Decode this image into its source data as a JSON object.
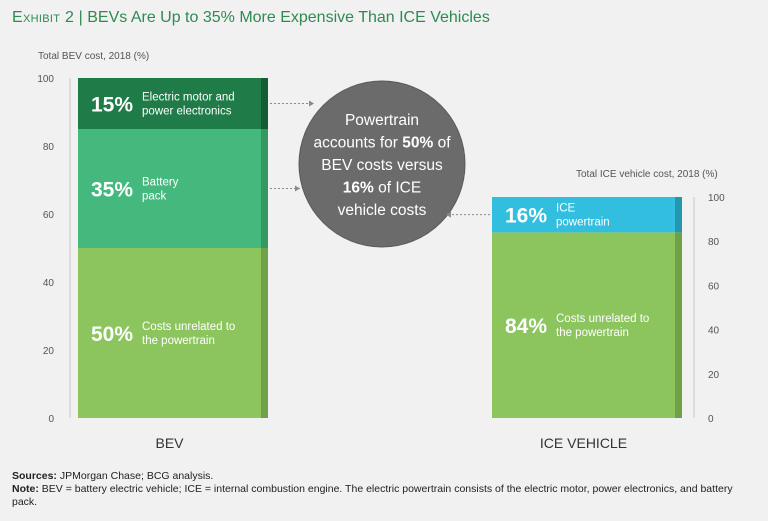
{
  "header": {
    "exhibit": "Exhibit 2",
    "separator": "|",
    "title": "BEVs Are Up to 35% More Expensive Than ICE Vehicles"
  },
  "chart_data": {
    "type": "bar",
    "title": "BEVs Are Up to 35% More Expensive Than ICE Vehicles",
    "stacked": true,
    "categories": [
      "BEV",
      "ICE VEHICLE"
    ],
    "axes": [
      {
        "label": "Total BEV cost, 2018 (%)",
        "ylim": [
          0,
          100
        ],
        "ticks": [
          0,
          20,
          40,
          60,
          80,
          100
        ],
        "applies_to": "BEV"
      },
      {
        "label": "Total ICE vehicle cost, 2018 (%)",
        "ylim": [
          0,
          100
        ],
        "ticks": [
          0,
          20,
          40,
          60,
          80,
          100
        ],
        "applies_to": "ICE VEHICLE"
      }
    ],
    "bars": [
      {
        "category": "BEV",
        "scale": 1.0,
        "segments": [
          {
            "value": 50,
            "pct_label": "50%",
            "label": "Costs unrelated to the powertrain",
            "color": "#8cc45e",
            "side": "#6fa248"
          },
          {
            "value": 35,
            "pct_label": "35%",
            "label": "Battery pack",
            "color": "#45b97d",
            "side": "#34985f"
          },
          {
            "value": 15,
            "pct_label": "15%",
            "label": "Electric motor and power electronics",
            "color": "#1f7b47",
            "side": "#155c34"
          }
        ]
      },
      {
        "category": "ICE VEHICLE",
        "scale": 0.65,
        "segments": [
          {
            "value": 84,
            "pct_label": "84%",
            "label": "Costs unrelated to the powertrain",
            "color": "#8cc45e",
            "side": "#6fa248"
          },
          {
            "value": 16,
            "pct_label": "16%",
            "label": "ICE powertrain",
            "color": "#32bede",
            "side": "#2396b0"
          }
        ]
      }
    ],
    "callout": {
      "text_parts": [
        "Powertrain",
        "accounts for ",
        "50%",
        " of",
        "BEV costs versus",
        "16%",
        " of ICE",
        "vehicle costs"
      ],
      "color": "#6b6b6b"
    }
  },
  "footer": {
    "sources_label": "Sources:",
    "sources_text": " JPMorgan Chase; BCG analysis.",
    "note_label": "Note:",
    "note_text": " BEV = battery electric vehicle; ICE = internal combustion engine. The electric powertrain consists of the electric motor, power electronics, and battery pack."
  }
}
